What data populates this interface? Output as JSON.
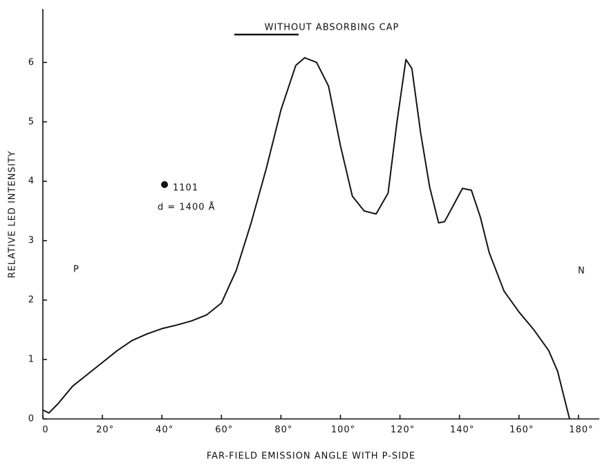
{
  "chart_data": {
    "type": "line",
    "title": "WITHOUT ABSORBING CAP",
    "xlabel": "FAR-FIELD EMISSION ANGLE WITH P-SIDE",
    "ylabel": "RELATIVE LED INTENSITY",
    "annotations": [
      "1101",
      "d = 1400 Å",
      "P",
      "N"
    ],
    "xlim": [
      0,
      187
    ],
    "ylim": [
      0,
      6.9
    ],
    "xticks": [
      0,
      {
        "value": 20,
        "label": "20°"
      },
      {
        "value": 40,
        "label": "40°"
      },
      {
        "value": 60,
        "label": "60°"
      },
      {
        "value": 80,
        "label": "80°"
      },
      {
        "value": 100,
        "label": "100°"
      },
      {
        "value": 120,
        "label": "120°"
      },
      {
        "value": 140,
        "label": "140°"
      },
      {
        "value": 160,
        "label": "160°"
      },
      {
        "value": 180,
        "label": "180°"
      }
    ],
    "yticks": [
      0,
      1,
      2,
      3,
      4,
      5,
      6
    ],
    "grid": false,
    "series": [
      {
        "color": "#111111",
        "x": [
          0,
          2,
          5,
          10,
          15,
          20,
          25,
          30,
          35,
          40,
          45,
          50,
          55,
          60,
          65,
          70,
          75,
          80,
          85,
          88,
          92,
          96,
          100,
          104,
          108,
          112,
          116,
          119,
          122,
          124,
          127,
          130,
          133,
          135,
          138,
          141,
          144,
          147,
          150,
          155,
          160,
          165,
          170,
          173,
          176,
          177
        ],
        "values": [
          0.15,
          0.1,
          0.25,
          0.55,
          0.75,
          0.95,
          1.15,
          1.32,
          1.43,
          1.52,
          1.58,
          1.65,
          1.75,
          1.95,
          2.5,
          3.3,
          4.2,
          5.2,
          5.95,
          6.08,
          6.0,
          5.6,
          4.6,
          3.75,
          3.5,
          3.45,
          3.8,
          5.0,
          6.05,
          5.9,
          4.8,
          3.9,
          3.3,
          3.32,
          3.6,
          3.88,
          3.85,
          3.4,
          2.8,
          2.15,
          1.8,
          1.5,
          1.15,
          0.8,
          0.2,
          0
        ]
      }
    ]
  }
}
